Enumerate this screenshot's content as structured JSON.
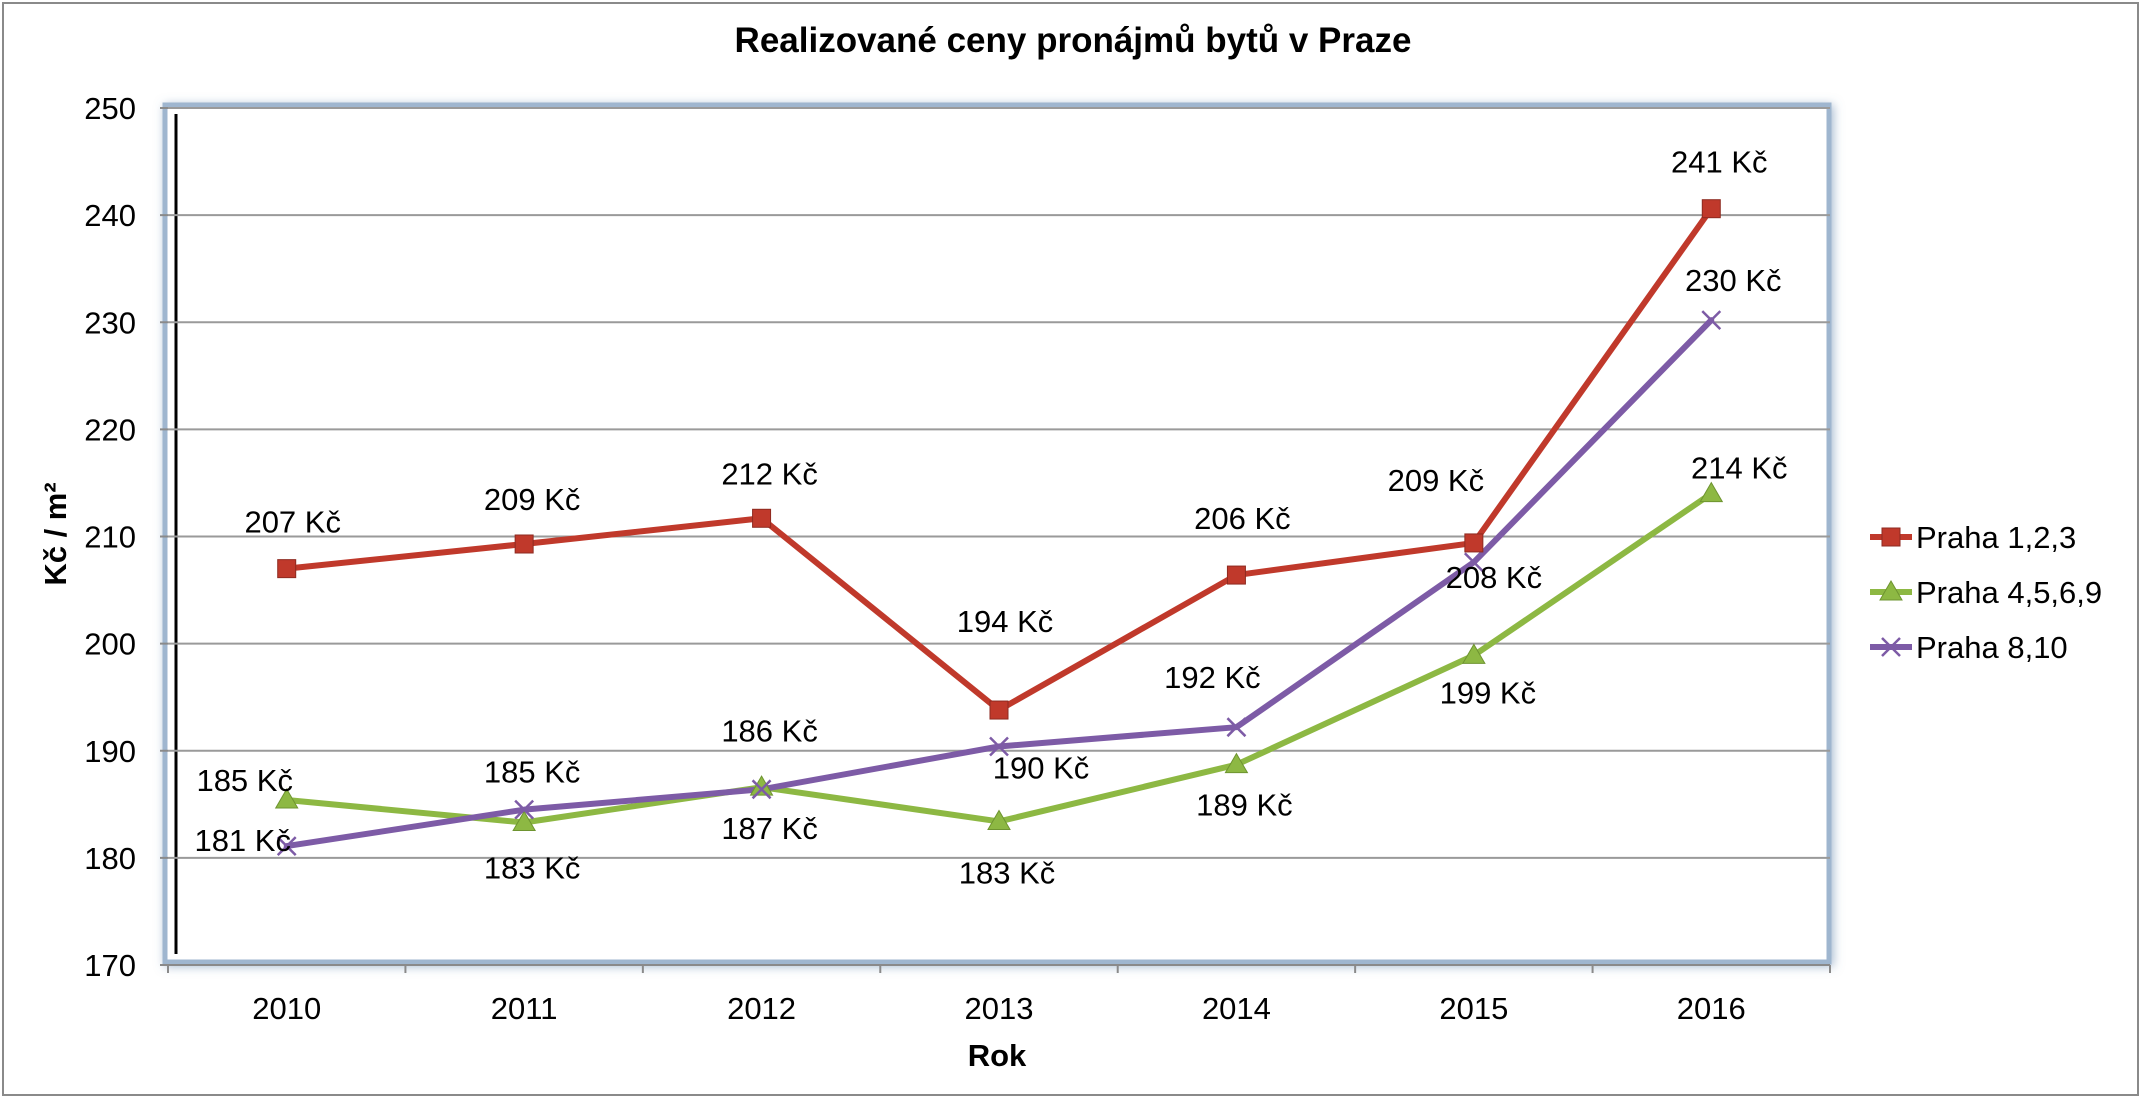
{
  "chart_data": {
    "type": "line",
    "title": "Realizované ceny pronájmů bytů v Praze",
    "xlabel": "Rok",
    "ylabel": "Kč / m²",
    "categories": [
      "2010",
      "2011",
      "2012",
      "2013",
      "2014",
      "2015",
      "2016"
    ],
    "ylim": [
      170,
      250
    ],
    "yticks": [
      "170",
      "180",
      "190",
      "200",
      "210",
      "220",
      "230",
      "240",
      "250"
    ],
    "grid": true,
    "legend_position": "right",
    "series": [
      {
        "name": "Praha 1,2,3",
        "color": "#c0392b",
        "marker": "square",
        "values": [
          207,
          209.3,
          211.7,
          193.8,
          206.4,
          209.4,
          240.6
        ],
        "labels": [
          "207 Kč",
          "209 Kč",
          "212 Kč",
          "194 Kč",
          "206 Kč",
          "209 Kč",
          "241 Kč"
        ]
      },
      {
        "name": "Praha 4,5,6,9",
        "color": "#8db843",
        "marker": "triangle",
        "values": [
          185.4,
          183.3,
          186.6,
          183.4,
          188.7,
          198.9,
          214
        ],
        "labels": [
          "185 Kč",
          "183 Kč",
          "187 Kč",
          "183 Kč",
          "189 Kč",
          "199 Kč",
          "214 Kč"
        ]
      },
      {
        "name": "Praha 8,10",
        "color": "#7d5ba6",
        "marker": "x",
        "values": [
          181.1,
          184.5,
          186.4,
          190.4,
          192.2,
          207.6,
          230.2
        ],
        "labels": [
          "181 Kč",
          "185 Kč",
          "186 Kč",
          "190 Kč",
          "192 Kč",
          "208 Kč",
          "230 Kč"
        ]
      }
    ]
  }
}
